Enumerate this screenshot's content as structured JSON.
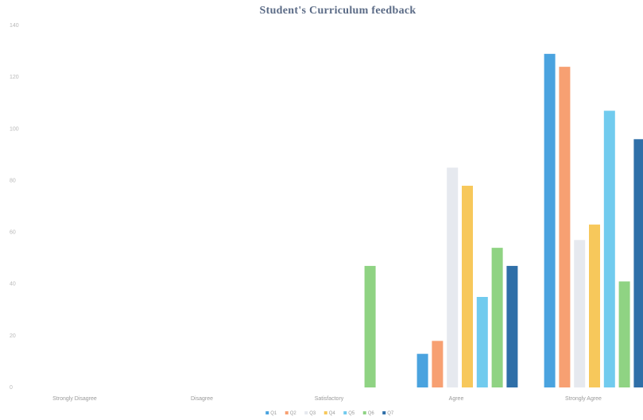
{
  "chart_data": {
    "type": "bar",
    "title": "Student's Curriculum feedback",
    "categories": [
      "Strongly Disagree",
      "Disagree",
      "Satisfactory",
      "Agree",
      "Strongly Agree"
    ],
    "ylim": [
      0,
      140
    ],
    "yticks": [
      0,
      20,
      40,
      60,
      80,
      100,
      120,
      140
    ],
    "grid": false,
    "legend_position": "bottom",
    "series": [
      {
        "name": "Q1",
        "color": "#4aa3df",
        "values": [
          0,
          0,
          0,
          13,
          129
        ]
      },
      {
        "name": "Q2",
        "color": "#f7a072",
        "values": [
          0,
          0,
          0,
          18,
          124
        ]
      },
      {
        "name": "Q3",
        "color": "#e6e9ef",
        "values": [
          0,
          0,
          0,
          85,
          57
        ]
      },
      {
        "name": "Q4",
        "color": "#f7c85b",
        "values": [
          0,
          0,
          0,
          78,
          63
        ]
      },
      {
        "name": "Q5",
        "color": "#71cbee",
        "values": [
          0,
          0,
          0,
          35,
          107
        ]
      },
      {
        "name": "Q6",
        "color": "#8fd383",
        "values": [
          0,
          0,
          47,
          54,
          41
        ]
      },
      {
        "name": "Q7",
        "color": "#2f6fa8",
        "values": [
          0,
          0,
          0,
          47,
          96
        ]
      }
    ]
  }
}
